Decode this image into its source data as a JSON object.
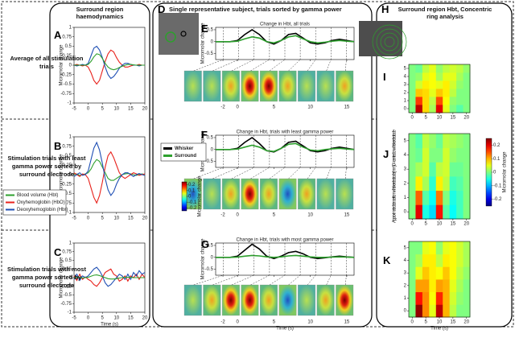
{
  "headers": {
    "left": "Surround region haemodynamics",
    "middle": "Single representative subject, trials sorted by gamma power",
    "right": "Surround region Hbt, Concentric ring analysis"
  },
  "row_labels": [
    "Average of all stimulation trials",
    "Stimulation trials with least gamma power sorted by surround electrode",
    "Stimulation trials with most gamma power sorted by surround electrode"
  ],
  "panel_letters": {
    "A": "A",
    "B": "B",
    "C": "C",
    "D": "D",
    "E": "E",
    "F": "F",
    "G": "G",
    "H": "H",
    "I": "I",
    "J": "J",
    "K": "K"
  },
  "chart_data": [
    {
      "type": "line",
      "ylabel": "Micromolar change",
      "xlim": [
        -5,
        20
      ],
      "ylim": [
        -1,
        1
      ],
      "xticks": [
        -5,
        0,
        5,
        10,
        15,
        20
      ],
      "yticks": [
        -1,
        -0.75,
        -0.5,
        -0.25,
        0,
        0.25,
        0.5,
        0.75,
        1
      ],
      "x": [
        -5,
        -4,
        -3,
        -2,
        -1,
        0,
        1,
        2,
        3,
        4,
        5,
        6,
        7,
        8,
        9,
        10,
        11,
        12,
        13,
        14,
        15,
        16,
        17,
        18,
        19,
        20
      ],
      "series": [
        {
          "color": "#e8221c",
          "values": [
            0,
            0.02,
            0,
            -0.02,
            0,
            -0.05,
            -0.2,
            -0.4,
            -0.5,
            -0.4,
            -0.15,
            0.1,
            0.3,
            0.4,
            0.35,
            0.2,
            0.08,
            0,
            -0.05,
            -0.05,
            -0.02,
            0,
            0,
            0.02,
            0,
            0
          ]
        },
        {
          "color": "#1f4fb4",
          "values": [
            0,
            -0.02,
            0,
            0.02,
            0,
            0.05,
            0.25,
            0.45,
            0.5,
            0.4,
            0.2,
            -0.05,
            -0.25,
            -0.35,
            -0.3,
            -0.2,
            -0.08,
            0,
            0.05,
            0.05,
            0.02,
            0,
            0,
            -0.02,
            0,
            0
          ]
        },
        {
          "color": "#2da02d",
          "values": [
            0,
            0,
            0,
            0,
            0,
            0.02,
            0.1,
            0.22,
            0.3,
            0.28,
            0.18,
            0.05,
            -0.05,
            -0.1,
            -0.12,
            -0.1,
            -0.06,
            -0.03,
            0,
            0.02,
            0.02,
            0.01,
            0,
            0,
            0,
            0
          ]
        }
      ]
    },
    {
      "type": "line",
      "ylabel": "Micromolar change",
      "xlim": [
        -5,
        20
      ],
      "ylim": [
        -1,
        1
      ],
      "xticks": [
        -5,
        0,
        5,
        10,
        15,
        20
      ],
      "yticks": [
        -1,
        -0.75,
        -0.5,
        -0.25,
        0,
        0.25,
        0.5,
        0.75,
        1
      ],
      "legend": "left",
      "x": [
        -5,
        -4,
        -3,
        -2,
        -1,
        0,
        1,
        2,
        3,
        4,
        5,
        6,
        7,
        8,
        9,
        10,
        11,
        12,
        13,
        14,
        15,
        16,
        17,
        18,
        19,
        20
      ],
      "series": [
        {
          "name": "Blood volume (Hbt)",
          "color": "#2da02d",
          "values": [
            0,
            0.02,
            -0.02,
            0,
            0.02,
            0.05,
            0.15,
            0.3,
            0.4,
            0.35,
            0.2,
            0.05,
            -0.1,
            -0.15,
            -0.15,
            -0.1,
            -0.05,
            0,
            0.02,
            0.03,
            0.02,
            0,
            -0.02,
            0,
            0.02,
            0
          ]
        },
        {
          "name": "Oxyhemoglobin (HbO)",
          "color": "#e8221c",
          "values": [
            0.05,
            0,
            -0.05,
            0.02,
            0,
            -0.1,
            -0.35,
            -0.6,
            -0.75,
            -0.55,
            -0.2,
            0.2,
            0.5,
            0.6,
            0.45,
            0.25,
            0.05,
            -0.05,
            -0.1,
            -0.05,
            0,
            0.05,
            0.02,
            -0.02,
            0,
            0.02
          ]
        },
        {
          "name": "Deoxyhemoglobin (Hbr)",
          "color": "#1f4fb4",
          "values": [
            -0.05,
            0,
            0.05,
            -0.02,
            0,
            0.1,
            0.4,
            0.7,
            0.85,
            0.65,
            0.3,
            -0.1,
            -0.4,
            -0.55,
            -0.45,
            -0.25,
            -0.1,
            0,
            0.05,
            0.05,
            0,
            -0.05,
            0,
            0.03,
            0,
            -0.02
          ]
        }
      ]
    },
    {
      "type": "line",
      "ylabel": "Micromolar change",
      "xlabel": "Time (s)",
      "xlim": [
        -5,
        20
      ],
      "ylim": [
        -1,
        1
      ],
      "xticks": [
        -5,
        0,
        5,
        10,
        15,
        20
      ],
      "yticks": [
        -1,
        -0.75,
        -0.5,
        -0.25,
        0,
        0.25,
        0.5,
        0.75,
        1
      ],
      "x": [
        -5,
        -4,
        -3,
        -2,
        -1,
        0,
        1,
        2,
        3,
        4,
        5,
        6,
        7,
        8,
        9,
        10,
        11,
        12,
        13,
        14,
        15,
        16,
        17,
        18,
        19,
        20
      ],
      "series": [
        {
          "color": "#e8221c",
          "values": [
            0.05,
            -0.08,
            0.1,
            -0.05,
            0.02,
            -0.05,
            -0.1,
            -0.2,
            -0.25,
            -0.15,
            0,
            0.15,
            0.2,
            0.25,
            0.1,
            0.05,
            -0.1,
            -0.05,
            0.05,
            -0.1,
            0.05,
            0,
            0.1,
            -0.05,
            0.1,
            0
          ]
        },
        {
          "color": "#1f4fb4",
          "values": [
            -0.05,
            0.1,
            -0.08,
            0.05,
            0,
            0.05,
            0.15,
            0.25,
            0.3,
            0.2,
            0.05,
            -0.15,
            -0.25,
            -0.2,
            -0.1,
            0,
            0.1,
            0.05,
            -0.05,
            0.1,
            -0.05,
            0.15,
            0.05,
            0.2,
            0.1,
            0.15
          ]
        },
        {
          "color": "#2da02d",
          "values": [
            0,
            0.01,
            0,
            -0.01,
            0,
            0.01,
            0.04,
            0.07,
            0.08,
            0.06,
            0.03,
            0,
            -0.03,
            -0.04,
            -0.04,
            -0.03,
            -0.01,
            0,
            0.01,
            0.01,
            0.01,
            0,
            0,
            0,
            0,
            0
          ]
        }
      ]
    },
    {
      "type": "line",
      "title": "Change in Hbt, all trials",
      "ylabel": "Micromolar change",
      "xlim": [
        -3,
        16
      ],
      "ylim": [
        -0.75,
        0.6
      ],
      "xticks": [
        -2,
        0,
        5,
        10,
        15
      ],
      "yticks": [
        -0.5,
        0,
        0.5
      ],
      "x": [
        -3,
        -2,
        -1,
        0,
        1,
        2,
        3,
        4,
        5,
        6,
        7,
        8,
        9,
        10,
        11,
        12,
        13,
        14,
        15,
        16
      ],
      "series": [
        {
          "color": "#000000",
          "values": [
            0,
            0,
            0,
            0.05,
            0.3,
            0.5,
            0.3,
            0,
            -0.1,
            0.05,
            0.3,
            0.35,
            0.15,
            -0.05,
            -0.1,
            -0.05,
            0.05,
            0.1,
            0.05,
            0
          ]
        },
        {
          "color": "#2da02d",
          "values": [
            0,
            0,
            0,
            0.02,
            0.12,
            0.2,
            0.15,
            0,
            -0.05,
            0.05,
            0.2,
            0.25,
            0.12,
            0,
            -0.05,
            -0.02,
            0.02,
            0.05,
            0.02,
            0
          ]
        }
      ]
    },
    {
      "type": "line",
      "title": "Change in Hbt, trials with least gamma power",
      "ylabel": "Micromolar change",
      "xlim": [
        -3,
        16
      ],
      "ylim": [
        -0.75,
        0.6
      ],
      "xticks": [
        -2,
        0,
        5,
        10,
        15
      ],
      "yticks": [
        -0.5,
        0,
        0.5
      ],
      "legend": "upper left",
      "x": [
        -3,
        -2,
        -1,
        0,
        1,
        2,
        3,
        4,
        5,
        6,
        7,
        8,
        9,
        10,
        11,
        12,
        13,
        14,
        15,
        16
      ],
      "series": [
        {
          "name": "Whisker",
          "color": "#000000",
          "values": [
            0,
            0,
            0,
            0.05,
            0.3,
            0.5,
            0.25,
            -0.05,
            -0.1,
            0.05,
            0.3,
            0.35,
            0.15,
            -0.05,
            -0.1,
            -0.05,
            0.05,
            0.1,
            0.05,
            0
          ]
        },
        {
          "name": "Surround",
          "color": "#2da02d",
          "values": [
            0,
            0,
            0,
            0.02,
            0.1,
            0.18,
            0.1,
            -0.05,
            -0.08,
            0.05,
            0.22,
            0.25,
            0.1,
            -0.02,
            -0.05,
            0,
            0.03,
            0.05,
            0.02,
            0
          ]
        }
      ]
    },
    {
      "type": "line",
      "title": "Change in Hbt, trials with most gamma power",
      "ylabel": "Micromolar change",
      "xlabel": "Time (s)",
      "xlim": [
        -3,
        16
      ],
      "ylim": [
        -0.75,
        0.6
      ],
      "xticks": [
        -2,
        0,
        5,
        10,
        15
      ],
      "yticks": [
        -0.5,
        0,
        0.5
      ],
      "x": [
        -3,
        -2,
        -1,
        0,
        1,
        2,
        3,
        4,
        5,
        6,
        7,
        8,
        9,
        10,
        11,
        12,
        13,
        14,
        15,
        16
      ],
      "series": [
        {
          "color": "#000000",
          "values": [
            0,
            0,
            0,
            0.05,
            0.3,
            0.55,
            0.35,
            0.05,
            -0.05,
            0.05,
            0.2,
            0.25,
            0.15,
            0,
            -0.05,
            -0.02,
            0.02,
            0.05,
            0.02,
            0
          ]
        },
        {
          "color": "#2da02d",
          "values": [
            0,
            0,
            0,
            0.01,
            0.05,
            0.08,
            0.06,
            0.02,
            0,
            0.02,
            0.06,
            0.08,
            0.05,
            0.02,
            0,
            0,
            0.01,
            0.02,
            0.01,
            0
          ]
        }
      ]
    },
    {
      "type": "heatmap",
      "xlim": [
        -1.25,
        21.25
      ],
      "ylim": [
        -0.5,
        5.5
      ],
      "xticks": [
        0,
        5,
        10,
        15,
        20
      ],
      "yticks": [
        0,
        1,
        2,
        3,
        4,
        5
      ],
      "zlim": [
        -0.25,
        0.25
      ],
      "x": [
        0,
        2.5,
        5,
        7.5,
        10,
        12.5,
        15,
        17.5,
        20
      ],
      "y": [
        0,
        1,
        2,
        3,
        4,
        5
      ],
      "z": [
        [
          0,
          0.22,
          0.08,
          0.02,
          0.2,
          0.05,
          0,
          -0.02,
          0
        ],
        [
          0,
          0.16,
          0.08,
          0.03,
          0.15,
          0.06,
          0.01,
          0,
          0
        ],
        [
          0,
          0.09,
          0.08,
          0.05,
          0.09,
          0.07,
          0.03,
          0,
          0
        ],
        [
          0,
          0.04,
          0.07,
          0.06,
          0.05,
          0.07,
          0.04,
          0.01,
          0
        ],
        [
          0,
          0.01,
          0.05,
          0.06,
          0.02,
          0.05,
          0.05,
          0.02,
          0
        ],
        [
          0,
          -0.01,
          0.03,
          0.05,
          0.01,
          0.03,
          0.04,
          0.03,
          0.01
        ]
      ]
    },
    {
      "type": "heatmap",
      "ylabel": "Approximate distance from whisker electrode (mm) 0 = centred on whisker electrode",
      "xlim": [
        -1.25,
        21.25
      ],
      "ylim": [
        -0.5,
        5.5
      ],
      "xticks": [
        0,
        5,
        10,
        15,
        20
      ],
      "yticks": [
        0,
        1,
        2,
        3,
        4,
        5
      ],
      "zlim": [
        -0.25,
        0.25
      ],
      "x": [
        0,
        2.5,
        5,
        7.5,
        10,
        12.5,
        15,
        17.5,
        20
      ],
      "y": [
        0,
        1,
        2,
        3,
        4,
        5
      ],
      "z": [
        [
          0,
          0.2,
          -0.05,
          -0.08,
          0.18,
          -0.02,
          -0.06,
          -0.03,
          0
        ],
        [
          0,
          0.14,
          -0.02,
          -0.06,
          0.13,
          0,
          -0.05,
          -0.03,
          0
        ],
        [
          0,
          0.07,
          0.02,
          -0.04,
          0.07,
          0.03,
          -0.03,
          -0.02,
          0
        ],
        [
          0,
          0.02,
          0.04,
          -0.02,
          0.03,
          0.04,
          -0.01,
          -0.01,
          0
        ],
        [
          0,
          -0.01,
          0.04,
          0,
          0,
          0.04,
          0.01,
          0,
          0
        ],
        [
          0,
          -0.02,
          0.03,
          0.01,
          -0.01,
          0.03,
          0.02,
          0.01,
          0
        ]
      ]
    },
    {
      "type": "heatmap",
      "xlabel": "Time (s)",
      "xlim": [
        -1.25,
        21.25
      ],
      "ylim": [
        -0.5,
        5.5
      ],
      "xticks": [
        0,
        5,
        10,
        15,
        20
      ],
      "yticks": [
        0,
        1,
        2,
        3,
        4,
        5
      ],
      "zlim": [
        -0.25,
        0.25
      ],
      "x": [
        0,
        2.5,
        5,
        7.5,
        10,
        12.5,
        15,
        17.5,
        20
      ],
      "y": [
        0,
        1,
        2,
        3,
        4,
        5
      ],
      "z": [
        [
          0,
          0.24,
          0.12,
          0.05,
          0.22,
          0.1,
          0.03,
          0,
          0
        ],
        [
          0,
          0.18,
          0.12,
          0.06,
          0.17,
          0.1,
          0.04,
          0.01,
          0
        ],
        [
          0,
          0.11,
          0.11,
          0.07,
          0.11,
          0.1,
          0.05,
          0.02,
          0
        ],
        [
          0,
          0.05,
          0.09,
          0.07,
          0.06,
          0.09,
          0.06,
          0.03,
          0.01
        ],
        [
          0,
          0.02,
          0.07,
          0.07,
          0.03,
          0.07,
          0.06,
          0.04,
          0.02
        ],
        [
          0,
          0,
          0.05,
          0.06,
          0.01,
          0.05,
          0.06,
          0.04,
          0.02
        ]
      ]
    },
    {
      "type": "colorbar",
      "ylabel": "Micromolar change",
      "ylim": [
        -0.25,
        0.25
      ],
      "yticks": [
        -0.2,
        -0.1,
        0,
        0.1,
        0.2
      ]
    },
    {
      "type": "colorbar",
      "ylabel": "Micromolar change",
      "ylim": [
        -0.25,
        0.25
      ],
      "yticks": [
        -0.2,
        -0.1,
        0,
        0.1,
        0.2
      ]
    }
  ]
}
